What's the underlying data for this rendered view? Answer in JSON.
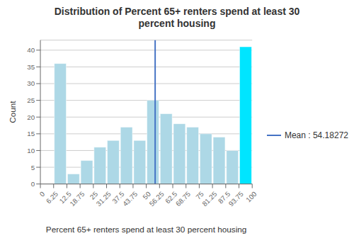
{
  "chart_data": {
    "type": "histogram",
    "title": "Distribution of Percent 65+ renters spend at least 30\npercent housing",
    "x_label": "Percent 65+ renters spend at least 30 percent housing",
    "y_label": "Count",
    "bins": [
      0,
      6.25,
      12.5,
      18.75,
      25,
      31.25,
      37.5,
      43.75,
      50,
      56.25,
      62.5,
      68.75,
      75,
      81.25,
      87.5,
      93.75,
      100
    ],
    "values": [
      0,
      36,
      3,
      7,
      11,
      13,
      17,
      13,
      25,
      21,
      18,
      17,
      15,
      14,
      10,
      41
    ],
    "colors": [
      "#add8e6",
      "#add8e6",
      "#add8e6",
      "#add8e6",
      "#add8e6",
      "#add8e6",
      "#add8e6",
      "#add8e6",
      "#add8e6",
      "#add8e6",
      "#add8e6",
      "#add8e6",
      "#add8e6",
      "#add8e6",
      "#add8e6",
      "#00e5ff"
    ],
    "mean_line": {
      "x": 54.18272,
      "name": "Mean : 54.18272",
      "color": "#4472c4"
    },
    "xlim": [
      0,
      100
    ],
    "xticks": [
      0,
      6.25,
      12.5,
      18.75,
      25,
      31.25,
      37.5,
      43.75,
      50,
      56.25,
      62.5,
      68.75,
      75,
      81.25,
      87.5,
      93.75,
      100
    ],
    "ylim": [
      0,
      43
    ],
    "yticks": [
      0,
      5,
      10,
      15,
      20,
      25,
      30,
      35,
      40
    ],
    "grid": true,
    "legend": "right"
  }
}
